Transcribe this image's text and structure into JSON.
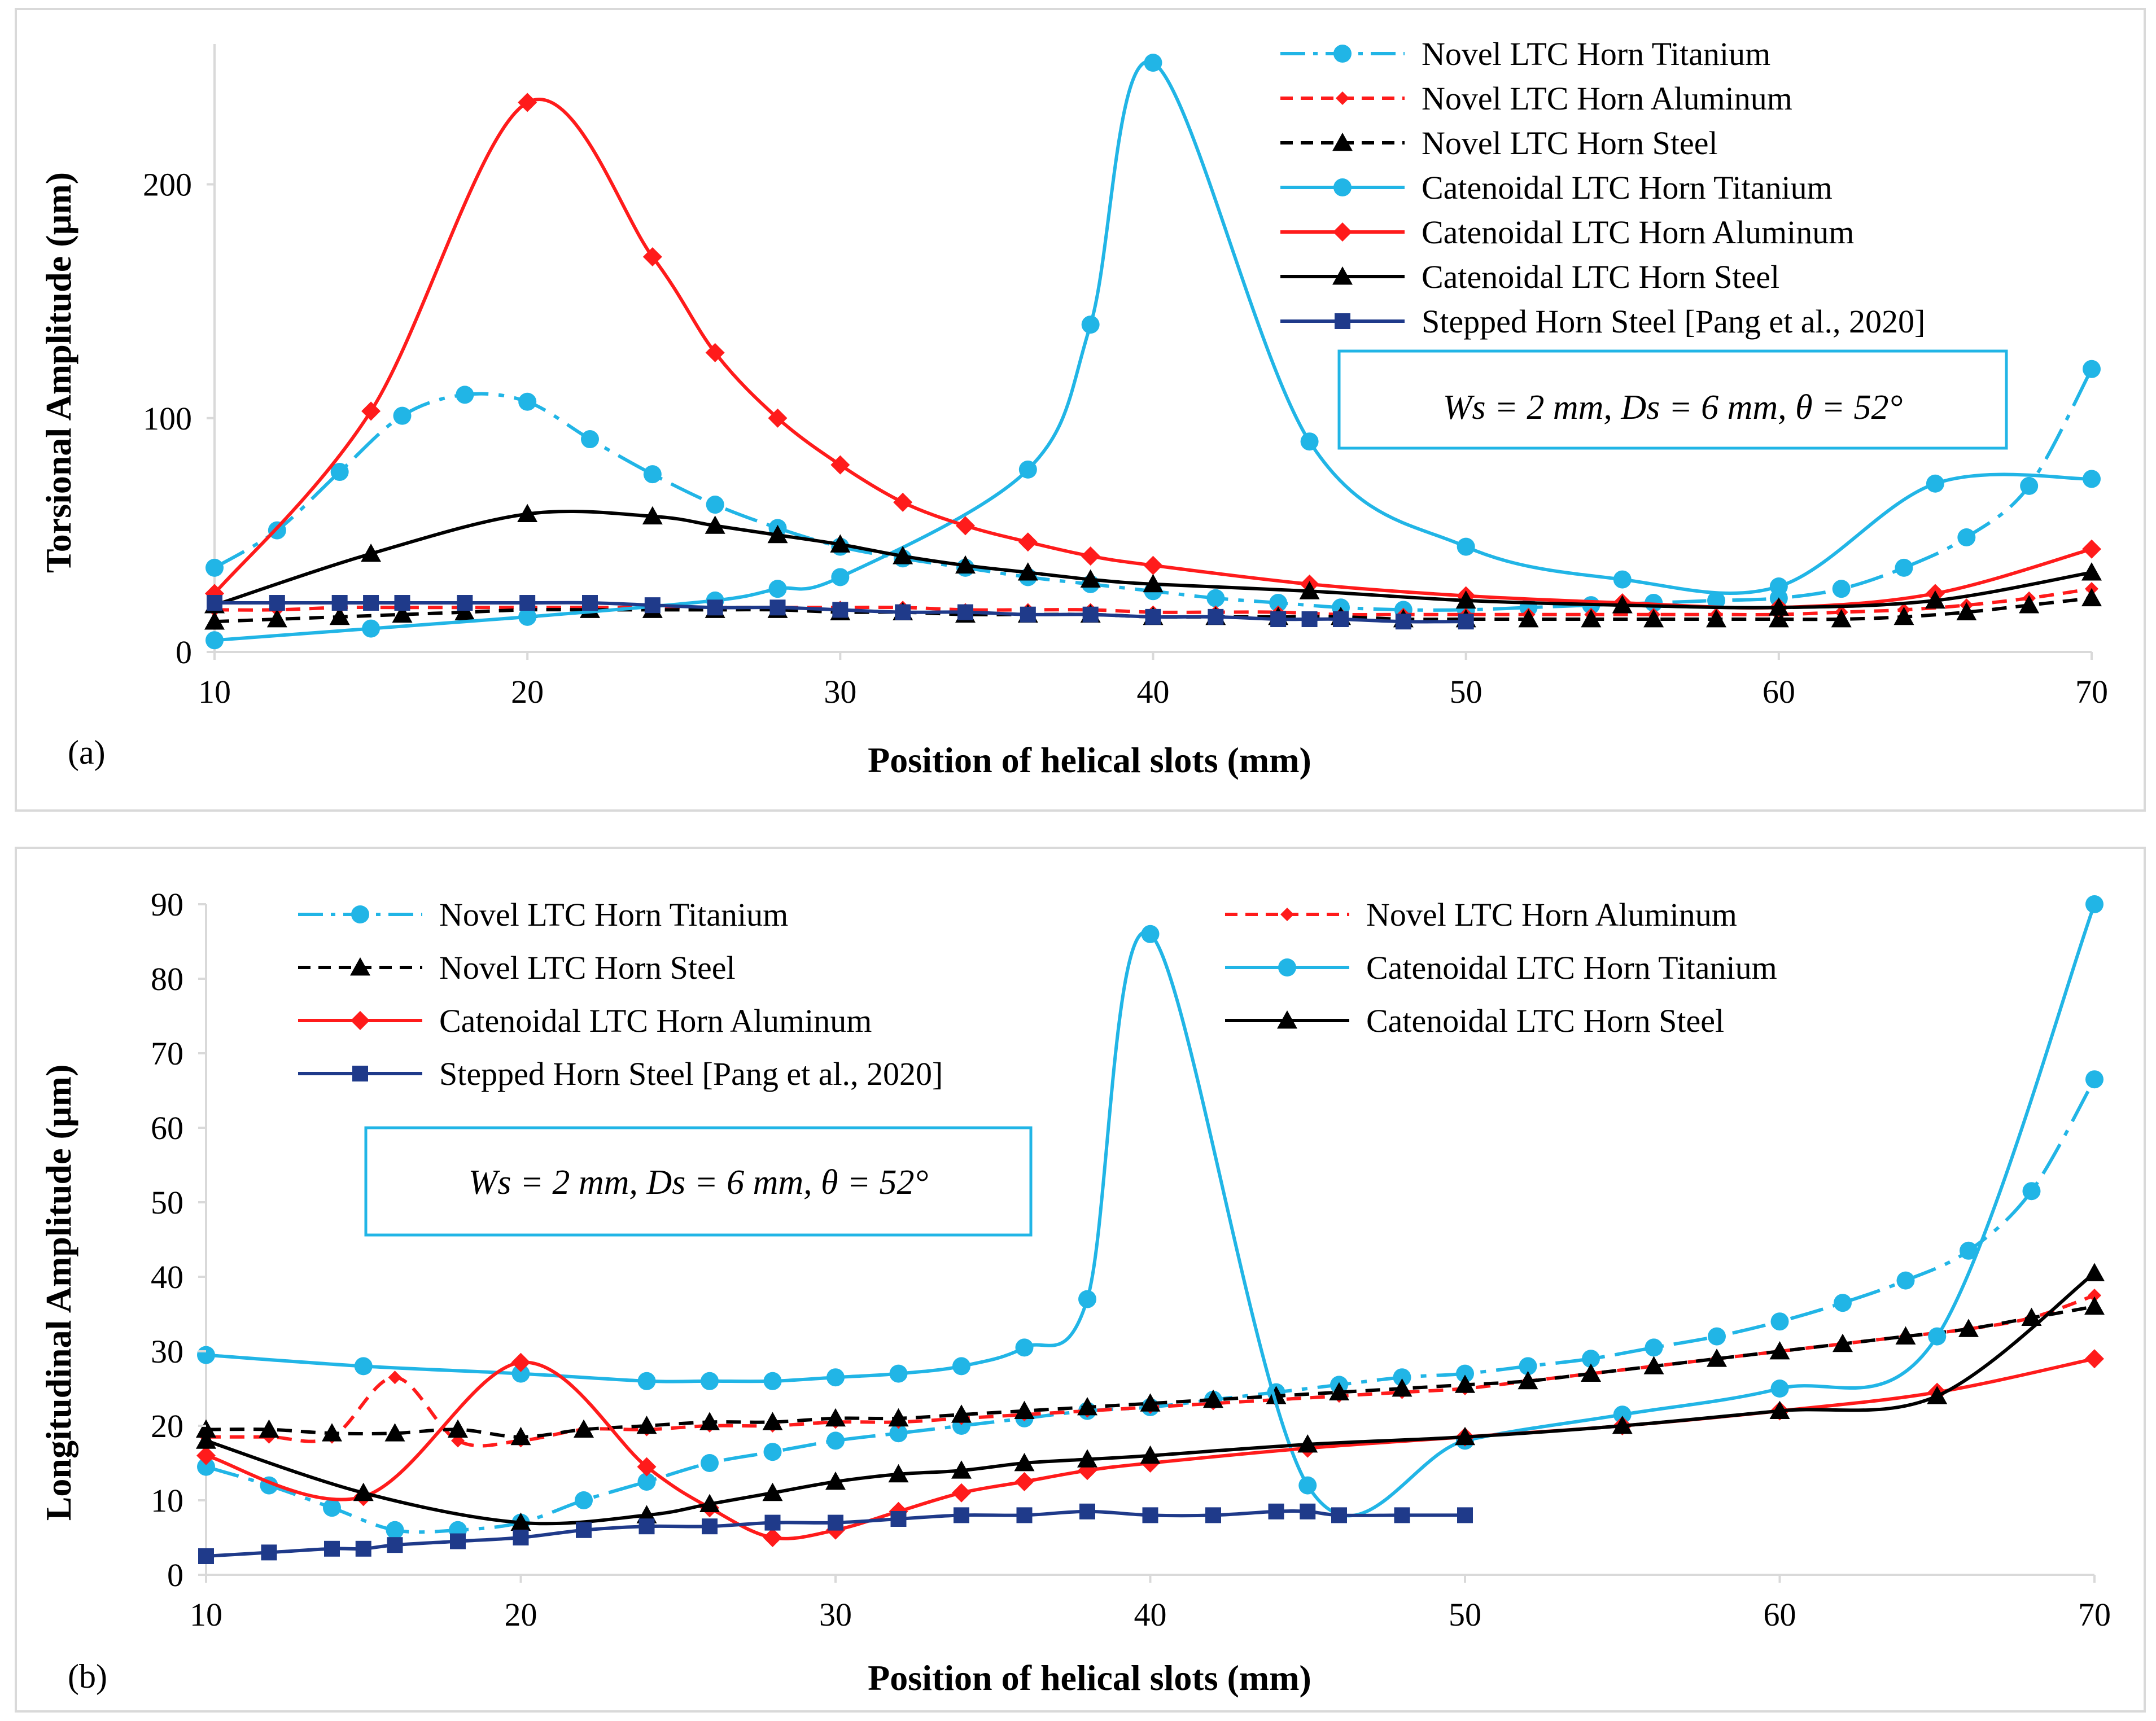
{
  "chart_data": [
    {
      "type": "line",
      "panel_label": "(a)",
      "xlabel": "Position of helical slots (mm)",
      "ylabel": "Torsional Amplitude (µm)",
      "xlim": [
        10,
        70
      ],
      "ylim": [
        0,
        260
      ],
      "xticks": [
        "10",
        "20",
        "30",
        "40",
        "50",
        "60",
        "70"
      ],
      "yticks": [
        "0",
        "100",
        "200"
      ],
      "annotation": "Ws = 2 mm, Ds = 6 mm, θ = 52°",
      "legend_position": "top-right",
      "series": [
        {
          "name": "Novel LTC Horn Titanium",
          "color": "#21B5E6",
          "dash": "dashdot",
          "marker": "circle",
          "x": [
            10,
            12,
            14,
            16,
            18,
            20,
            22,
            24,
            26,
            28,
            30,
            32,
            34,
            36,
            38,
            40,
            42,
            44,
            46,
            48,
            50,
            52,
            54,
            56,
            58,
            60,
            62,
            64,
            66,
            68,
            70
          ],
          "y": [
            36,
            52,
            77,
            101,
            110,
            107,
            91,
            76,
            63,
            53,
            45,
            40,
            36,
            32,
            29,
            26,
            23,
            21,
            19,
            18,
            18,
            19,
            20,
            21,
            22,
            23,
            27,
            36,
            49,
            71,
            121
          ]
        },
        {
          "name": "Novel LTC Horn Aluminum",
          "color": "#FF1B1B",
          "dash": "dash",
          "marker": "diamond-small",
          "x": [
            10,
            12,
            14,
            16,
            18,
            20,
            22,
            24,
            26,
            28,
            30,
            32,
            34,
            36,
            38,
            40,
            42,
            44,
            46,
            48,
            50,
            52,
            54,
            56,
            58,
            60,
            62,
            64,
            66,
            68,
            70
          ],
          "y": [
            18,
            18,
            19,
            19,
            19,
            19,
            19,
            19,
            19,
            19,
            19,
            19,
            18,
            18,
            18,
            17,
            17,
            17,
            16,
            16,
            16,
            16,
            16,
            16,
            16,
            16,
            17,
            18,
            20,
            23,
            27
          ]
        },
        {
          "name": "Novel LTC Horn Steel",
          "color": "#000000",
          "dash": "dash",
          "marker": "triangle",
          "x": [
            10,
            12,
            14,
            16,
            18,
            20,
            22,
            24,
            26,
            28,
            30,
            32,
            34,
            36,
            38,
            40,
            42,
            44,
            46,
            48,
            50,
            52,
            54,
            56,
            58,
            60,
            62,
            64,
            66,
            68,
            70
          ],
          "y": [
            13,
            14,
            15,
            16,
            17,
            18,
            18,
            18,
            18,
            18,
            17,
            17,
            16,
            16,
            16,
            15,
            15,
            15,
            15,
            14,
            14,
            14,
            14,
            14,
            14,
            14,
            14,
            15,
            17,
            20,
            23
          ]
        },
        {
          "name": "Catenoidal LTC Horn Titanium",
          "color": "#21B5E6",
          "dash": "solid",
          "marker": "circle",
          "x": [
            10,
            15,
            20,
            26,
            28,
            30,
            36,
            38,
            40,
            45,
            50,
            55,
            60,
            65,
            70
          ],
          "y": [
            5,
            10,
            15,
            22,
            27,
            32,
            78,
            140,
            252,
            90,
            45,
            31,
            28,
            72,
            74
          ]
        },
        {
          "name": "Catenoidal LTC Horn Aluminum",
          "color": "#FF1B1B",
          "dash": "solid",
          "marker": "diamond",
          "x": [
            10,
            15,
            20,
            24,
            26,
            28,
            30,
            32,
            34,
            36,
            38,
            40,
            45,
            50,
            55,
            60,
            65,
            70
          ],
          "y": [
            25,
            103,
            235,
            169,
            128,
            100,
            80,
            64,
            54,
            47,
            41,
            37,
            29,
            24,
            21,
            19,
            25,
            44
          ]
        },
        {
          "name": "Catenoidal LTC Horn Steel",
          "color": "#000000",
          "dash": "solid",
          "marker": "triangle",
          "x": [
            10,
            15,
            20,
            24,
            26,
            28,
            30,
            32,
            34,
            36,
            38,
            40,
            45,
            50,
            55,
            60,
            65,
            70
          ],
          "y": [
            20,
            42,
            59,
            58,
            54,
            50,
            46,
            41,
            37,
            34,
            31,
            29,
            26,
            22,
            20,
            19,
            22,
            34
          ]
        },
        {
          "name": "Stepped Horn Steel [Pang et al., 2020]",
          "color": "#1F3A8A",
          "dash": "solid",
          "marker": "square",
          "x": [
            10,
            12,
            14,
            15,
            16,
            18,
            20,
            22,
            24,
            26,
            28,
            30,
            32,
            34,
            36,
            38,
            40,
            42,
            44,
            45,
            46,
            48,
            50
          ],
          "y": [
            21,
            21,
            21,
            21,
            21,
            21,
            21,
            21,
            20,
            19,
            19,
            18,
            17,
            17,
            16,
            16,
            15,
            15,
            14,
            14,
            14,
            13,
            13
          ]
        }
      ]
    },
    {
      "type": "line",
      "panel_label": "(b)",
      "xlabel": "Position of helical slots (mm)",
      "ylabel": "Longitudinal Amplitude (µm)",
      "xlim": [
        10,
        70
      ],
      "ylim": [
        0,
        90
      ],
      "xticks": [
        "10",
        "20",
        "30",
        "40",
        "50",
        "60",
        "70"
      ],
      "yticks": [
        "0",
        "10",
        "20",
        "30",
        "40",
        "50",
        "60",
        "70",
        "80",
        "90"
      ],
      "annotation": "Ws = 2 mm, Ds = 6 mm, θ = 52°",
      "legend_position": "top",
      "series": [
        {
          "name": "Novel LTC Horn Titanium",
          "color": "#21B5E6",
          "dash": "dashdot",
          "marker": "circle",
          "x": [
            10,
            12,
            14,
            16,
            18,
            20,
            22,
            24,
            26,
            28,
            30,
            32,
            34,
            36,
            38,
            40,
            42,
            44,
            46,
            48,
            50,
            52,
            54,
            56,
            58,
            60,
            62,
            64,
            66,
            68,
            70
          ],
          "y": [
            14.5,
            12,
            9,
            6,
            6,
            7,
            10,
            12.5,
            15,
            16.5,
            18,
            19,
            20,
            21,
            22,
            22.5,
            23.5,
            24.5,
            25.5,
            26.5,
            27,
            28,
            29,
            30.5,
            32,
            34,
            36.5,
            39.5,
            43.5,
            51.5,
            66.5
          ]
        },
        {
          "name": "Novel LTC Horn Aluminum",
          "color": "#FF1B1B",
          "dash": "dash",
          "marker": "diamond-small",
          "x": [
            10,
            12,
            14,
            16,
            18,
            20,
            22,
            24,
            26,
            28,
            30,
            32,
            34,
            36,
            38,
            40,
            42,
            44,
            46,
            48,
            50,
            52,
            54,
            56,
            58,
            60,
            62,
            64,
            66,
            68,
            70
          ],
          "y": [
            18.5,
            18.5,
            18.5,
            26.5,
            18,
            18,
            19.5,
            19.5,
            20,
            20,
            20.5,
            20.5,
            21,
            21.5,
            22,
            22.5,
            23,
            23.5,
            24,
            24.5,
            25,
            26,
            27,
            28,
            29,
            30,
            31,
            32,
            33,
            34.5,
            37.5
          ]
        },
        {
          "name": "Novel LTC Horn Steel",
          "color": "#000000",
          "dash": "dash",
          "marker": "triangle",
          "x": [
            10,
            12,
            14,
            16,
            18,
            20,
            22,
            24,
            26,
            28,
            30,
            32,
            34,
            36,
            38,
            40,
            42,
            44,
            46,
            48,
            50,
            52,
            54,
            56,
            58,
            60,
            62,
            64,
            66,
            68,
            70
          ],
          "y": [
            19.5,
            19.5,
            19,
            19,
            19.5,
            18.5,
            19.5,
            20,
            20.5,
            20.5,
            21,
            21,
            21.5,
            22,
            22.5,
            23,
            23.5,
            24,
            24.5,
            25,
            25.5,
            26,
            27,
            28,
            29,
            30,
            31,
            32,
            33,
            34.5,
            36
          ]
        },
        {
          "name": "Catenoidal LTC Horn Titanium",
          "color": "#21B5E6",
          "dash": "solid",
          "marker": "circle",
          "x": [
            10,
            15,
            20,
            24,
            26,
            28,
            30,
            32,
            34,
            36,
            38,
            40,
            45,
            50,
            55,
            60,
            65,
            70
          ],
          "y": [
            29.5,
            28,
            27,
            26,
            26,
            26,
            26.5,
            27,
            28,
            30.5,
            37,
            86,
            12,
            18,
            21.5,
            25,
            32,
            90
          ]
        },
        {
          "name": "Catenoidal LTC Horn Aluminum",
          "color": "#FF1B1B",
          "dash": "solid",
          "marker": "diamond",
          "x": [
            10,
            15,
            20,
            24,
            26,
            28,
            30,
            32,
            34,
            36,
            38,
            40,
            45,
            50,
            55,
            60,
            65,
            70
          ],
          "y": [
            16,
            10.5,
            28.5,
            14.5,
            9,
            5,
            6,
            8.5,
            11,
            12.5,
            14,
            15,
            17,
            18.5,
            20,
            22,
            24.5,
            29
          ]
        },
        {
          "name": "Catenoidal LTC Horn Steel",
          "color": "#000000",
          "dash": "solid",
          "marker": "triangle",
          "x": [
            10,
            15,
            20,
            24,
            26,
            28,
            30,
            32,
            34,
            36,
            38,
            40,
            45,
            50,
            55,
            60,
            65,
            70
          ],
          "y": [
            18,
            11,
            7,
            8,
            9.5,
            11,
            12.5,
            13.5,
            14,
            15,
            15.5,
            16,
            17.5,
            18.5,
            20,
            22,
            24,
            40.5
          ]
        },
        {
          "name": "Stepped Horn Steel [Pang et al., 2020]",
          "color": "#1F3A8A",
          "dash": "solid",
          "marker": "square",
          "x": [
            10,
            12,
            14,
            15,
            16,
            18,
            20,
            22,
            24,
            26,
            28,
            30,
            32,
            34,
            36,
            38,
            40,
            42,
            44,
            45,
            46,
            48,
            50
          ],
          "y": [
            2.5,
            3,
            3.5,
            3.5,
            4,
            4.5,
            5,
            6,
            6.5,
            6.5,
            7,
            7,
            7.5,
            8,
            8,
            8.5,
            8,
            8,
            8.5,
            8.5,
            8,
            8,
            8
          ]
        }
      ]
    }
  ]
}
